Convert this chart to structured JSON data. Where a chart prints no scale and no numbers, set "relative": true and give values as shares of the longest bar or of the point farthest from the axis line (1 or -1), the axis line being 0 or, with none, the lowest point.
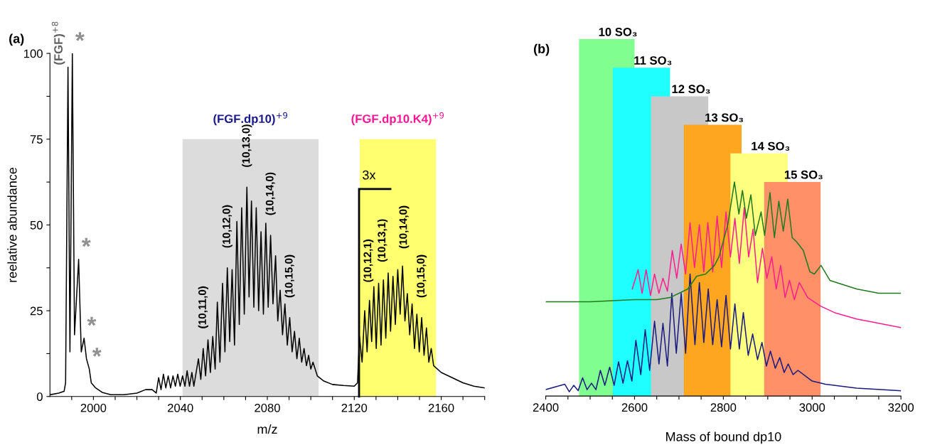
{
  "chart_data": [
    {
      "type": "line",
      "title": "(a)",
      "xlabel": "m/z",
      "ylabel": "reelative abundance",
      "xlim": [
        1980,
        2180
      ],
      "ylim": [
        0,
        100
      ],
      "xticks": [
        {
          "value": 1990,
          "label": null
        },
        2000,
        {
          "value": 2010,
          "label": null
        },
        {
          "value": 2020,
          "label": null
        },
        {
          "value": 2030,
          "label": null
        },
        2040,
        {
          "value": 2050,
          "label": null
        },
        {
          "value": 2060,
          "label": null
        },
        {
          "value": 2070,
          "label": null
        },
        2080,
        {
          "value": 2090,
          "label": null
        },
        {
          "value": 2100,
          "label": null
        },
        {
          "value": 2110,
          "label": null
        },
        2120,
        {
          "value": 2130,
          "label": null
        },
        {
          "value": 2140,
          "label": null
        },
        {
          "value": 2150,
          "label": null
        },
        2160,
        {
          "value": 2170,
          "label": null
        },
        {
          "value": 2180,
          "label": null
        }
      ],
      "yticks": [
        0,
        {
          "value": 12.5,
          "label": null
        },
        25,
        {
          "value": 37.5,
          "label": null
        },
        50,
        {
          "value": 62.5,
          "label": null
        },
        75,
        {
          "value": 87.5,
          "label": null
        },
        100
      ],
      "series": [
        {
          "color": "#000000",
          "x": [
            1980,
            1984,
            1986.5,
            1987.2,
            1988.3,
            1989.2,
            1990.3,
            1991.3,
            1993.2,
            1994.4,
            1995.7,
            1996.8,
            1998.1,
            1999,
            2001,
            2004,
            2008,
            2014,
            2020,
            2024,
            2027,
            2028.9,
            2030,
            2031.1,
            2032.2,
            2033.3,
            2034.4,
            2035.5,
            2036.6,
            2037.7,
            2038.8,
            2039.9,
            2041,
            2042.1,
            2043.1,
            2044.2,
            2045.3,
            2046.2,
            2048.3,
            2049.4,
            2050.5,
            2051.6,
            2052.7,
            2053.8,
            2054.9,
            2056,
            2057,
            2058.2,
            2059.4,
            2060.5,
            2061.6,
            2062.7,
            2063.8,
            2064.9,
            2066,
            2067.1,
            2068.2,
            2069.4,
            2070.6,
            2071.6,
            2072.7,
            2073.8,
            2074.9,
            2076,
            2077.1,
            2078.2,
            2079.3,
            2080.4,
            2081.5,
            2082.6,
            2083.8,
            2084.8,
            2085.9,
            2087,
            2088.1,
            2089.2,
            2090.3,
            2091.4,
            2092.5,
            2093.6,
            2094.7,
            2095.8,
            2096.9,
            2098,
            2099,
            2100,
            2101,
            2103,
            2106,
            2110,
            2115,
            2120,
            2121.5,
            2122.4,
            2123.6,
            2124.8,
            2125.9,
            2127,
            2128,
            2129,
            2130.1,
            2131.2,
            2132.3,
            2133.4,
            2134.5,
            2135.6,
            2136.7,
            2137.8,
            2138.9,
            2140,
            2141.1,
            2142.2,
            2143.3,
            2144.4,
            2145.5,
            2146.6,
            2147.7,
            2148.8,
            2149.9,
            2151,
            2152.1,
            2153.2,
            2154.3,
            2155.4,
            2156.5,
            2160,
            2165,
            2170,
            2175,
            2180
          ],
          "values": [
            0.5,
            1,
            1.5,
            4,
            96,
            13,
            100,
            18,
            40,
            13,
            17,
            11,
            8,
            4,
            2.5,
            1.2,
            0.5,
            0.5,
            1,
            2,
            2,
            1,
            5.5,
            2,
            6.5,
            2.5,
            6,
            2.5,
            6,
            3,
            6.5,
            3,
            6,
            3,
            7.5,
            3,
            7,
            3,
            11,
            5,
            14,
            6,
            16.5,
            7,
            17.5,
            8,
            27.5,
            10,
            33,
            13,
            37.5,
            16,
            37,
            15,
            51,
            21,
            55,
            24,
            61,
            29,
            57,
            26,
            55,
            25,
            48,
            24,
            50.5,
            26,
            47,
            27,
            41,
            22,
            31,
            18,
            27,
            15,
            23,
            13,
            19,
            11,
            17,
            10,
            14,
            9,
            12,
            8,
            10,
            6,
            4.5,
            3.5,
            3.2,
            3,
            4,
            17.5,
            10,
            25,
            13,
            28,
            16,
            32,
            14,
            33,
            15,
            34,
            17,
            36,
            19,
            35,
            21,
            37,
            24,
            38,
            22,
            30,
            18,
            27,
            14,
            24,
            13,
            23,
            12,
            20,
            10,
            14,
            9,
            7,
            5.5,
            4,
            3,
            2.5
          ]
        }
      ],
      "bands": [
        {
          "axis": "x",
          "from": 2041,
          "to": 2103.6,
          "label": "(FGF.dp10)$^{+9}$",
          "color": "#dcdcdc"
        },
        {
          "axis": "x",
          "from": 2122.5,
          "to": 2157.6,
          "label": "(FGF.dp10.K4)$^{+9}$",
          "color": "#ffff70"
        }
      ],
      "ref_lines": [
        {
          "axis": "x",
          "value": 2122.2,
          "label": "3x",
          "color": "#000000"
        }
      ],
      "annotations": [
        {
          "text": "(FGF)$^{+8}$",
          "x": 1988.3,
          "y": 96
        },
        {
          "text": "*",
          "x": 1990.3,
          "y": 100
        },
        {
          "text": "*",
          "x": 1993.2,
          "y": 40
        },
        {
          "text": "*",
          "x": 1995.7,
          "y": 17
        },
        {
          "text": "*",
          "x": 1998.1,
          "y": 8
        },
        {
          "text": "(10,11,0)",
          "x": 2050.5,
          "y": 14
        },
        {
          "text": "(10,12,0)",
          "x": 2061.6,
          "y": 37.5
        },
        {
          "text": "(10,13,0)",
          "x": 2070.6,
          "y": 61
        },
        {
          "text": "(10,14,0)",
          "x": 2081.5,
          "y": 47
        },
        {
          "text": "(10,15,0)",
          "x": 2090.3,
          "y": 23
        },
        {
          "text": "(10,12,1)",
          "x": 2126.5,
          "y": 27.5
        },
        {
          "text": "(10,13,1)",
          "x": 2133,
          "y": 33.4
        },
        {
          "text": "(10,14,0)",
          "x": 2142.9,
          "y": 37.3
        },
        {
          "text": "(10,15,0)",
          "x": 2151,
          "y": 23
        }
      ]
    },
    {
      "type": "line",
      "title": "(b)",
      "xlabel": "Mass of bound dp10",
      "relative": true,
      "tick_labels": "x",
      "xlim": [
        2400,
        3200
      ],
      "xticks": [
        2400,
        {
          "value": 2450,
          "label": null
        },
        {
          "value": 2500,
          "label": null
        },
        {
          "value": 2550,
          "label": null
        },
        2600,
        {
          "value": 2650,
          "label": null
        },
        {
          "value": 2700,
          "label": null
        },
        {
          "value": 2750,
          "label": null
        },
        2800,
        {
          "value": 2850,
          "label": null
        },
        {
          "value": 2900,
          "label": null
        },
        {
          "value": 2950,
          "label": null
        },
        3000,
        {
          "value": 3050,
          "label": null
        },
        {
          "value": 3100,
          "label": null
        },
        {
          "value": 3150,
          "label": null
        },
        3200
      ],
      "series": [
        {
          "color": "#1a1a80",
          "x": [
            2400,
            2443,
            2453,
            2463,
            2473,
            2483,
            2493,
            2503,
            2513,
            2523,
            2533,
            2544,
            2554,
            2564,
            2574,
            2584,
            2594,
            2603,
            2614,
            2624,
            2634,
            2645,
            2655,
            2664,
            2674,
            2684,
            2694,
            2705,
            2715,
            2725,
            2736,
            2746,
            2756,
            2766,
            2776,
            2786,
            2796,
            2806,
            2816,
            2826,
            2836,
            2845,
            2856,
            2866,
            2877,
            2887,
            2897,
            2906,
            2917,
            2927,
            2937,
            2946,
            2957,
            2968,
            3000,
            3030,
            3100,
            3200
          ],
          "values": [
            0.03,
            0.055,
            0.02,
            0.05,
            0.025,
            0.085,
            0.03,
            0.06,
            0.03,
            0.12,
            0.05,
            0.135,
            0.05,
            0.16,
            0.06,
            0.165,
            0.07,
            0.26,
            0.1,
            0.31,
            0.12,
            0.35,
            0.15,
            0.34,
            0.14,
            0.48,
            0.2,
            0.48,
            0.2,
            0.57,
            0.24,
            0.53,
            0.25,
            0.5,
            0.24,
            0.45,
            0.23,
            0.47,
            0.22,
            0.43,
            0.22,
            0.39,
            0.19,
            0.29,
            0.17,
            0.25,
            0.14,
            0.21,
            0.13,
            0.18,
            0.11,
            0.15,
            0.1,
            0.12,
            0.07,
            0.055,
            0.037,
            0.025
          ]
        },
        {
          "color": "#ff1f8f",
          "x": [
            2595,
            2608,
            2617,
            2626,
            2636,
            2645,
            2655,
            2664,
            2674,
            2685,
            2695,
            2705,
            2715,
            2725,
            2735,
            2746,
            2756,
            2765,
            2776,
            2786,
            2796,
            2806,
            2816,
            2826,
            2836,
            2847,
            2857,
            2867,
            2877,
            2888,
            2898,
            2909,
            2919,
            2929,
            2939,
            2949,
            2960,
            2971,
            2990,
            3019,
            3050,
            3100,
            3150,
            3200
          ],
          "values": [
            0.5,
            0.59,
            0.48,
            0.59,
            0.47,
            0.57,
            0.48,
            0.55,
            0.49,
            0.68,
            0.55,
            0.71,
            0.57,
            0.81,
            0.6,
            0.8,
            0.58,
            0.81,
            0.58,
            0.84,
            0.6,
            0.86,
            0.65,
            0.83,
            0.62,
            0.88,
            0.65,
            0.78,
            0.53,
            0.69,
            0.55,
            0.65,
            0.5,
            0.61,
            0.46,
            0.54,
            0.45,
            0.53,
            0.46,
            0.42,
            0.39,
            0.36,
            0.34,
            0.32
          ]
        },
        {
          "color": "#1f7a1f",
          "x": [
            2400,
            2500,
            2600,
            2650,
            2680,
            2720,
            2740,
            2760,
            2780,
            2790,
            2810,
            2825,
            2835,
            2843,
            2852,
            2862,
            2872,
            2885,
            2893,
            2905,
            2915,
            2925,
            2935,
            2945,
            2955,
            2965,
            2980,
            2995,
            3005,
            3020,
            3040,
            3070,
            3100,
            3150,
            3200
          ],
          "values": [
            0.44,
            0.44,
            0.45,
            0.45,
            0.46,
            0.5,
            0.56,
            0.57,
            0.61,
            0.65,
            0.8,
            1.0,
            0.85,
            0.96,
            0.83,
            0.94,
            0.75,
            0.86,
            0.75,
            0.95,
            0.74,
            0.91,
            0.77,
            0.92,
            0.74,
            0.72,
            0.68,
            0.58,
            0.57,
            0.61,
            0.54,
            0.52,
            0.5,
            0.48,
            0.48
          ]
        }
      ],
      "bands": [
        {
          "axis": "x",
          "from": 2475,
          "to": 2600,
          "label": "10 SO₃",
          "color": "#80ff90"
        },
        {
          "axis": "x",
          "from": 2551,
          "to": 2680,
          "label": "11 SO₃",
          "color": "#20ffff"
        },
        {
          "axis": "x",
          "from": 2637,
          "to": 2766,
          "label": "12 SO₃",
          "color": "#c8c8c8"
        },
        {
          "axis": "x",
          "from": 2711,
          "to": 2841,
          "label": "13 SO₃",
          "color": "#ffa620"
        },
        {
          "axis": "x",
          "from": 2816,
          "to": 2945,
          "label": "14 SO₃",
          "color": "#ffff80"
        },
        {
          "axis": "x",
          "from": 2892,
          "to": 3019,
          "label": "15 SO₃",
          "color": "#ff9068"
        }
      ]
    }
  ]
}
